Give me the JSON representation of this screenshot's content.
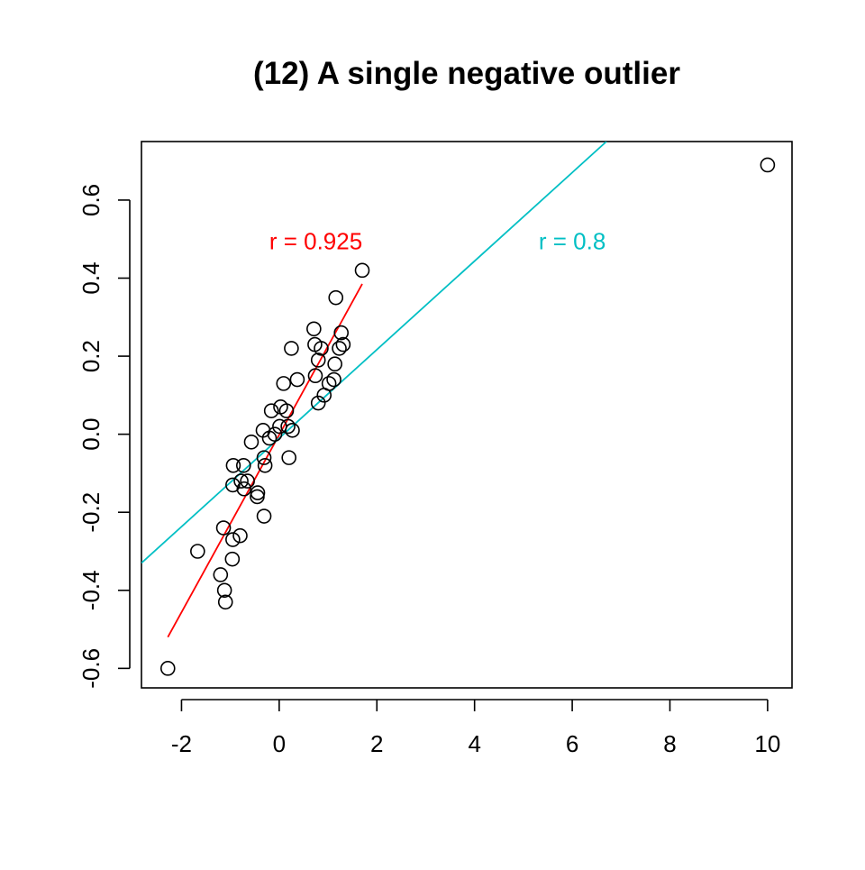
{
  "chart_data": {
    "type": "scatter",
    "title": "(12) A single negative outlier",
    "xlabel": "",
    "ylabel": "",
    "xlim": [
      -2.82,
      10.5
    ],
    "ylim": [
      -0.65,
      0.75
    ],
    "x_ticks": [
      -2,
      0,
      2,
      4,
      6,
      8,
      10
    ],
    "x_tick_labels": [
      "-2",
      "0",
      "2",
      "4",
      "6",
      "8",
      "10"
    ],
    "y_ticks": [
      -0.6,
      -0.4,
      -0.2,
      0.0,
      0.2,
      0.4,
      0.6
    ],
    "y_tick_labels": [
      "-0.6",
      "-0.4",
      "-0.2",
      "0.0",
      "0.2",
      "0.4",
      "0.6"
    ],
    "grid": false,
    "points": [
      {
        "x": -2.28,
        "y": -0.6
      },
      {
        "x": 10.0,
        "y": 0.69
      },
      {
        "x": -1.67,
        "y": -0.3
      },
      {
        "x": -1.2,
        "y": -0.36
      },
      {
        "x": -1.12,
        "y": -0.4
      },
      {
        "x": -1.1,
        "y": -0.43
      },
      {
        "x": -1.14,
        "y": -0.24
      },
      {
        "x": -0.95,
        "y": -0.27
      },
      {
        "x": -0.96,
        "y": -0.32
      },
      {
        "x": -0.8,
        "y": -0.26
      },
      {
        "x": -0.94,
        "y": -0.08
      },
      {
        "x": -0.95,
        "y": -0.13
      },
      {
        "x": -0.78,
        "y": -0.12
      },
      {
        "x": -0.73,
        "y": -0.08
      },
      {
        "x": -0.72,
        "y": -0.14
      },
      {
        "x": -0.65,
        "y": -0.12
      },
      {
        "x": -0.57,
        "y": -0.02
      },
      {
        "x": -0.45,
        "y": -0.16
      },
      {
        "x": -0.44,
        "y": -0.15
      },
      {
        "x": -0.31,
        "y": -0.06
      },
      {
        "x": -0.29,
        "y": -0.08
      },
      {
        "x": -0.31,
        "y": -0.21
      },
      {
        "x": -0.33,
        "y": 0.01
      },
      {
        "x": -0.2,
        "y": -0.01
      },
      {
        "x": -0.16,
        "y": 0.06
      },
      {
        "x": -0.09,
        "y": 0.0
      },
      {
        "x": 0.01,
        "y": 0.02
      },
      {
        "x": 0.03,
        "y": 0.07
      },
      {
        "x": 0.09,
        "y": 0.13
      },
      {
        "x": 0.15,
        "y": 0.06
      },
      {
        "x": 0.18,
        "y": 0.02
      },
      {
        "x": 0.2,
        "y": -0.06
      },
      {
        "x": 0.27,
        "y": 0.01
      },
      {
        "x": 0.25,
        "y": 0.22
      },
      {
        "x": 0.37,
        "y": 0.14
      },
      {
        "x": 0.71,
        "y": 0.27
      },
      {
        "x": 0.73,
        "y": 0.23
      },
      {
        "x": 0.74,
        "y": 0.15
      },
      {
        "x": 0.8,
        "y": 0.19
      },
      {
        "x": 0.8,
        "y": 0.08
      },
      {
        "x": 0.86,
        "y": 0.22
      },
      {
        "x": 0.92,
        "y": 0.1
      },
      {
        "x": 1.02,
        "y": 0.13
      },
      {
        "x": 1.12,
        "y": 0.14
      },
      {
        "x": 1.14,
        "y": 0.18
      },
      {
        "x": 1.16,
        "y": 0.35
      },
      {
        "x": 1.23,
        "y": 0.22
      },
      {
        "x": 1.27,
        "y": 0.26
      },
      {
        "x": 1.31,
        "y": 0.23
      },
      {
        "x": 1.7,
        "y": 0.42
      }
    ],
    "fit_lines": [
      {
        "color": "#ff0000",
        "x": [
          -2.28,
          1.7
        ],
        "y": [
          -0.52,
          0.385
        ]
      },
      {
        "color": "#00bfc4",
        "x": [
          -2.82,
          6.7
        ],
        "y": [
          -0.33,
          0.75
        ]
      }
    ],
    "annotations": [
      {
        "text": "r = 0.925",
        "color": "#ff0000",
        "x": 0.75,
        "y": 0.495
      },
      {
        "text": "r = 0.8",
        "color": "#00bfc4",
        "x": 6.0,
        "y": 0.495
      }
    ]
  }
}
